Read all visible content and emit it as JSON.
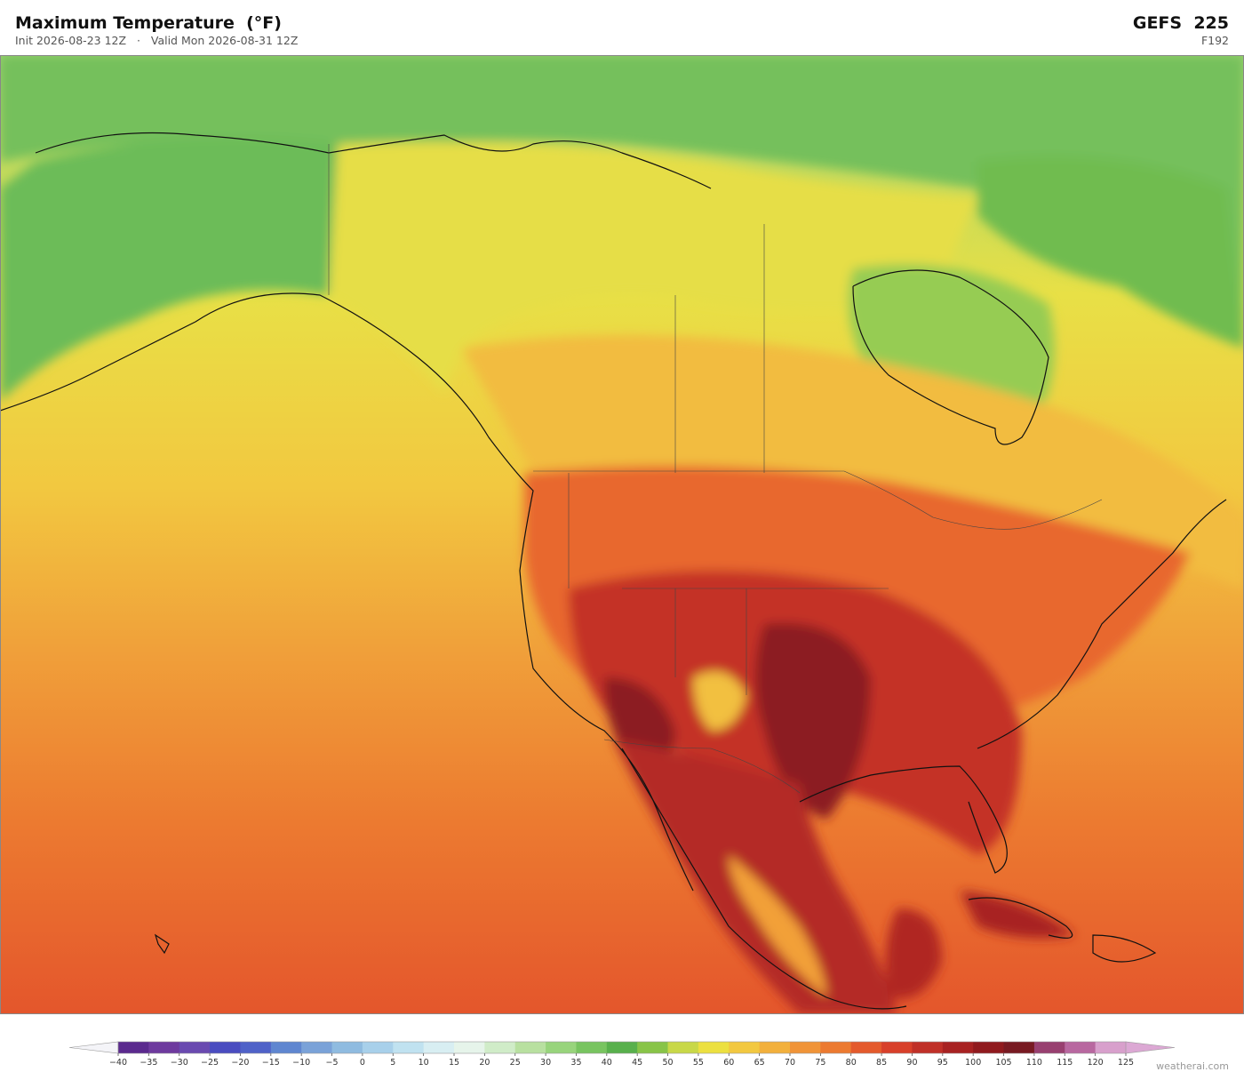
{
  "header": {
    "title": "Maximum Temperature  (°F)",
    "init": "Init 2026-08-23 12Z",
    "separator": "·",
    "valid": "Valid Mon 2026-08-31 12Z",
    "model": "GEFS  225",
    "forecast_hour": "F192"
  },
  "colorbar": {
    "ticks": [
      {
        "value": -40,
        "label": "−40"
      },
      {
        "value": -35,
        "label": "−35"
      },
      {
        "value": -30,
        "label": "−30"
      },
      {
        "value": -25,
        "label": "−25"
      },
      {
        "value": -20,
        "label": "−20"
      },
      {
        "value": -15,
        "label": "−15"
      },
      {
        "value": -10,
        "label": "−10"
      },
      {
        "value": -5,
        "label": "−5"
      },
      0,
      5,
      10,
      15,
      20,
      25,
      30,
      35,
      40,
      45,
      50,
      55,
      60,
      65,
      70,
      75,
      80,
      85,
      90,
      95,
      100,
      105,
      110,
      115,
      120,
      125
    ],
    "colors": [
      "#5b2a8e",
      "#6e3a9e",
      "#6a4ab0",
      "#4a4cc0",
      "#4f62c8",
      "#5f86d0",
      "#7aa2d8",
      "#8fbbe0",
      "#a8d0ea",
      "#c0e2f0",
      "#d8eef2",
      "#e6f4ea",
      "#d0ecc8",
      "#b8e0a0",
      "#98d47c",
      "#78c460",
      "#58b04c",
      "#88c448",
      "#c8d848",
      "#ece040",
      "#f2c840",
      "#f2b03c",
      "#f09438",
      "#ec7a30",
      "#e45a2c",
      "#d8402a",
      "#c03028",
      "#a82222",
      "#901a1e",
      "#781a22",
      "#984070",
      "#b868a0",
      "#d8a0cc"
    ],
    "under_color": "#f4f4f8",
    "over_color": "#dca8d4"
  },
  "watermark": "weatherai.com"
}
